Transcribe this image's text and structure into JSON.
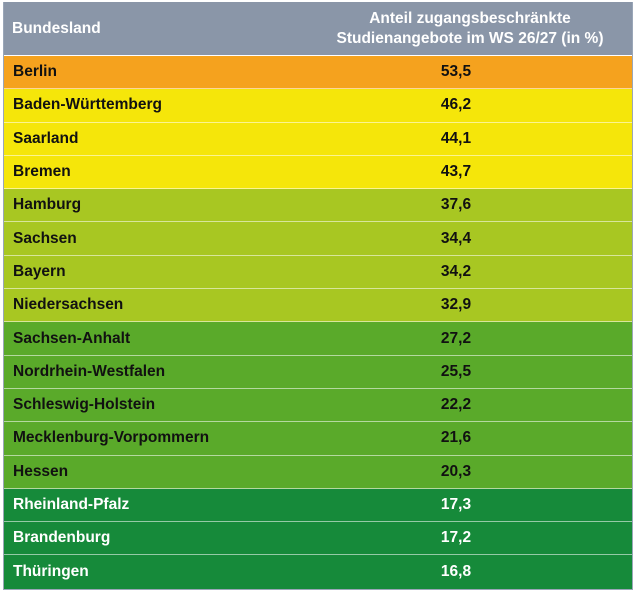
{
  "header": {
    "col1": "Bundesland",
    "col2": "Anteil zugangsbeschränkte\nStudienangebote im WS 26/27 (in %)"
  },
  "colors": {
    "orange": "#f5a21e",
    "yellow": "#f5e60a",
    "lime": "#a8c722",
    "green": "#5aaa2a",
    "dark_green": "#168a3a",
    "header": "#8a96a8"
  },
  "rows": [
    {
      "land": "Berlin",
      "value": "53,5",
      "tier": "orange"
    },
    {
      "land": "Baden-Württemberg",
      "value": "46,2",
      "tier": "yellow"
    },
    {
      "land": "Saarland",
      "value": "44,1",
      "tier": "yellow"
    },
    {
      "land": "Bremen",
      "value": "43,7",
      "tier": "yellow"
    },
    {
      "land": "Hamburg",
      "value": "37,6",
      "tier": "lime"
    },
    {
      "land": "Sachsen",
      "value": "34,4",
      "tier": "lime"
    },
    {
      "land": "Bayern",
      "value": "34,2",
      "tier": "lime"
    },
    {
      "land": "Niedersachsen",
      "value": "32,9",
      "tier": "lime"
    },
    {
      "land": "Sachsen-Anhalt",
      "value": "27,2",
      "tier": "green"
    },
    {
      "land": "Nordrhein-Westfalen",
      "value": "25,5",
      "tier": "green"
    },
    {
      "land": "Schleswig-Holstein",
      "value": "22,2",
      "tier": "green"
    },
    {
      "land": "Mecklenburg-Vorpommern",
      "value": "21,6",
      "tier": "green"
    },
    {
      "land": "Hessen",
      "value": "20,3",
      "tier": "green"
    },
    {
      "land": "Rheinland-Pfalz",
      "value": "17,3",
      "tier": "dark"
    },
    {
      "land": "Brandenburg",
      "value": "17,2",
      "tier": "dark"
    },
    {
      "land": "Thüringen",
      "value": "16,8",
      "tier": "dark"
    }
  ]
}
